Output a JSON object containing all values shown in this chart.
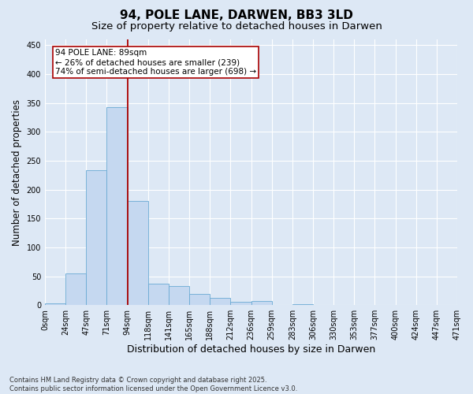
{
  "title1": "94, POLE LANE, DARWEN, BB3 3LD",
  "title2": "Size of property relative to detached houses in Darwen",
  "xlabel": "Distribution of detached houses by size in Darwen",
  "ylabel": "Number of detached properties",
  "bin_labels": [
    "0sqm",
    "24sqm",
    "47sqm",
    "71sqm",
    "94sqm",
    "118sqm",
    "141sqm",
    "165sqm",
    "188sqm",
    "212sqm",
    "236sqm",
    "259sqm",
    "283sqm",
    "306sqm",
    "330sqm",
    "353sqm",
    "377sqm",
    "400sqm",
    "424sqm",
    "447sqm",
    "471sqm"
  ],
  "bar_values": [
    3,
    55,
    233,
    343,
    180,
    37,
    33,
    20,
    13,
    6,
    7,
    0,
    2,
    0,
    0,
    0,
    0,
    0,
    0,
    0
  ],
  "bar_color": "#c5d8f0",
  "bar_edge_color": "#6aaad4",
  "background_color": "#dde8f5",
  "grid_color": "#ffffff",
  "vline_color": "#aa0000",
  "annotation_text": "94 POLE LANE: 89sqm\n← 26% of detached houses are smaller (239)\n74% of semi-detached houses are larger (698) →",
  "annotation_box_color": "#ffffff",
  "annotation_box_edge": "#aa0000",
  "ylim": [
    0,
    460
  ],
  "yticks": [
    0,
    50,
    100,
    150,
    200,
    250,
    300,
    350,
    400,
    450
  ],
  "footer": "Contains HM Land Registry data © Crown copyright and database right 2025.\nContains public sector information licensed under the Open Government Licence v3.0.",
  "title_fontsize": 11,
  "subtitle_fontsize": 9.5,
  "axis_label_fontsize": 8.5,
  "tick_fontsize": 7,
  "annotation_fontsize": 7.5
}
